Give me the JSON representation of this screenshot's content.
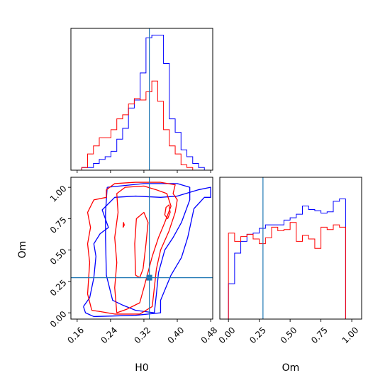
{
  "colors": {
    "series_blue": "#0000ff",
    "series_red": "#ff0000",
    "truth_line": "#1f77b4",
    "axes": "#000000"
  },
  "chart_data": [
    {
      "id": "hist-H0",
      "type": "histogram",
      "title": "",
      "xlabel": "",
      "ylabel": "",
      "xlim": [
        0.145,
        0.485
      ],
      "xticks": [
        0.16,
        0.24,
        0.32,
        0.4,
        0.48
      ],
      "tick_labels_shown": false,
      "truth": 0.333,
      "bin_edges": [
        0.157,
        0.171,
        0.185,
        0.199,
        0.213,
        0.227,
        0.241,
        0.255,
        0.269,
        0.283,
        0.297,
        0.311,
        0.325,
        0.339,
        0.353,
        0.367,
        0.381,
        0.395,
        0.409,
        0.423,
        0.437,
        0.451,
        0.465
      ],
      "series": [
        {
          "color": "blue",
          "counts": [
            0,
            0.02,
            0.02,
            0.05,
            0.08,
            0.1,
            0.14,
            0.23,
            0.31,
            0.46,
            0.52,
            0.72,
            0.98,
            1.0,
            1.0,
            0.79,
            0.38,
            0.28,
            0.15,
            0.1,
            0.05,
            0.02
          ]
        },
        {
          "color": "red",
          "counts": [
            0,
            0.02,
            0.12,
            0.18,
            0.24,
            0.24,
            0.3,
            0.38,
            0.41,
            0.49,
            0.53,
            0.52,
            0.58,
            0.66,
            0.51,
            0.3,
            0.18,
            0.12,
            0.04,
            0.02,
            0,
            0
          ]
        }
      ]
    },
    {
      "id": "hist-Om",
      "type": "histogram",
      "title": "",
      "xlabel": "Om",
      "ylabel": "",
      "xlim": [
        -0.07,
        1.08
      ],
      "xticks": [
        0.0,
        0.25,
        0.5,
        0.75,
        1.0
      ],
      "xtick_labels": [
        "0.00",
        "0.25",
        "0.50",
        "0.75",
        "1.00"
      ],
      "truth": 0.28,
      "bin_edges": [
        0.0,
        0.05,
        0.1,
        0.15,
        0.2,
        0.25,
        0.3,
        0.35,
        0.4,
        0.45,
        0.5,
        0.55,
        0.6,
        0.65,
        0.7,
        0.75,
        0.8,
        0.85,
        0.9,
        0.95,
        1.0
      ],
      "series": [
        {
          "color": "blue",
          "counts": [
            0.3,
            0.56,
            0.66,
            0.72,
            0.73,
            0.77,
            0.8,
            0.8,
            0.8,
            0.84,
            0.86,
            0.89,
            0.96,
            0.93,
            0.92,
            0.9,
            0.91,
            1.0,
            1.02,
            0
          ]
        },
        {
          "color": "red",
          "counts": [
            0.73,
            0.66,
            0.7,
            0.72,
            0.68,
            0.64,
            0.69,
            0.78,
            0.75,
            0.76,
            0.82,
            0.66,
            0.71,
            0.68,
            0.6,
            0.78,
            0.76,
            0.8,
            0.78,
            0
          ]
        }
      ]
    },
    {
      "id": "contour-H0-Om",
      "type": "contour",
      "title": "",
      "xlabel": "H0",
      "ylabel": "Om",
      "xlim": [
        0.145,
        0.485
      ],
      "ylim": [
        -0.05,
        1.08
      ],
      "xticks": [
        0.16,
        0.24,
        0.32,
        0.4,
        0.48
      ],
      "xtick_labels": [
        "0.16",
        "0.24",
        "0.32",
        "0.40",
        "0.48"
      ],
      "yticks": [
        0.0,
        0.25,
        0.5,
        0.75,
        1.0
      ],
      "ytick_labels": [
        "0.00",
        "0.25",
        "0.50",
        "0.75",
        "1.00"
      ],
      "truth": {
        "x": 0.333,
        "y": 0.28
      },
      "contours": [
        {
          "color": "blue",
          "points": [
            [
              0.175,
              0.05
            ],
            [
              0.19,
              0.12
            ],
            [
              0.2,
              0.28
            ],
            [
              0.205,
              0.45
            ],
            [
              0.2,
              0.55
            ],
            [
              0.215,
              0.63
            ],
            [
              0.235,
              0.68
            ],
            [
              0.22,
              0.82
            ],
            [
              0.25,
              0.92
            ],
            [
              0.3,
              0.93
            ],
            [
              0.36,
              0.92
            ],
            [
              0.4,
              0.93
            ],
            [
              0.45,
              0.98
            ],
            [
              0.48,
              1.0
            ],
            [
              0.48,
              0.92
            ],
            [
              0.465,
              0.92
            ],
            [
              0.44,
              0.83
            ],
            [
              0.425,
              0.6
            ],
            [
              0.41,
              0.44
            ],
            [
              0.385,
              0.3
            ],
            [
              0.36,
              0.1
            ],
            [
              0.36,
              0.0
            ],
            [
              0.3,
              -0.02
            ],
            [
              0.2,
              -0.03
            ],
            [
              0.18,
              0.0
            ],
            [
              0.175,
              0.05
            ]
          ]
        },
        {
          "color": "blue",
          "points": [
            [
              0.232,
              1.0
            ],
            [
              0.32,
              1.03
            ],
            [
              0.4,
              1.03
            ],
            [
              0.43,
              1.0
            ],
            [
              0.43,
              0.9
            ],
            [
              0.41,
              0.72
            ],
            [
              0.39,
              0.6
            ],
            [
              0.37,
              0.5
            ],
            [
              0.355,
              0.32
            ],
            [
              0.35,
              0.15
            ],
            [
              0.345,
              0.0
            ],
            [
              0.3,
              0.02
            ],
            [
              0.27,
              0.06
            ],
            [
              0.245,
              0.1
            ],
            [
              0.23,
              0.3
            ],
            [
              0.228,
              0.6
            ],
            [
              0.228,
              0.8
            ],
            [
              0.232,
              1.0
            ]
          ]
        },
        {
          "color": "red",
          "points": [
            [
              0.195,
              0.02
            ],
            [
              0.185,
              0.15
            ],
            [
              0.19,
              0.4
            ],
            [
              0.185,
              0.55
            ],
            [
              0.192,
              0.68
            ],
            [
              0.185,
              0.8
            ],
            [
              0.2,
              0.9
            ],
            [
              0.23,
              0.92
            ],
            [
              0.23,
              0.98
            ],
            [
              0.25,
              1.03
            ],
            [
              0.3,
              1.04
            ],
            [
              0.36,
              1.04
            ],
            [
              0.395,
              1.02
            ],
            [
              0.39,
              0.95
            ],
            [
              0.4,
              0.9
            ],
            [
              0.395,
              0.8
            ],
            [
              0.38,
              0.65
            ],
            [
              0.36,
              0.5
            ],
            [
              0.35,
              0.35
            ],
            [
              0.345,
              0.2
            ],
            [
              0.34,
              0.05
            ],
            [
              0.31,
              -0.01
            ],
            [
              0.25,
              -0.01
            ],
            [
              0.215,
              0.01
            ],
            [
              0.195,
              0.02
            ]
          ]
        },
        {
          "color": "red",
          "points": [
            [
              0.255,
              0.0
            ],
            [
              0.25,
              0.2
            ],
            [
              0.255,
              0.4
            ],
            [
              0.25,
              0.6
            ],
            [
              0.258,
              0.8
            ],
            [
              0.255,
              0.95
            ],
            [
              0.275,
              1.0
            ],
            [
              0.32,
              1.01
            ],
            [
              0.35,
              0.98
            ],
            [
              0.375,
              0.95
            ],
            [
              0.385,
              0.85
            ],
            [
              0.37,
              0.72
            ],
            [
              0.355,
              0.6
            ],
            [
              0.34,
              0.45
            ],
            [
              0.32,
              0.2
            ],
            [
              0.31,
              0.08
            ],
            [
              0.28,
              0.03
            ],
            [
              0.255,
              0.0
            ]
          ]
        },
        {
          "color": "red",
          "points": [
            [
              0.3,
              0.3
            ],
            [
              0.298,
              0.55
            ],
            [
              0.302,
              0.75
            ],
            [
              0.32,
              0.8
            ],
            [
              0.33,
              0.72
            ],
            [
              0.325,
              0.55
            ],
            [
              0.318,
              0.35
            ],
            [
              0.31,
              0.28
            ],
            [
              0.3,
              0.3
            ]
          ]
        },
        {
          "color": "red",
          "points": [
            [
              0.37,
              0.78
            ],
            [
              0.373,
              0.84
            ],
            [
              0.38,
              0.86
            ],
            [
              0.383,
              0.8
            ],
            [
              0.377,
              0.75
            ],
            [
              0.37,
              0.78
            ]
          ]
        },
        {
          "color": "red",
          "points": [
            [
              0.27,
              0.68
            ],
            [
              0.271,
              0.72
            ],
            [
              0.273,
              0.7
            ],
            [
              0.27,
              0.68
            ]
          ]
        }
      ]
    }
  ]
}
